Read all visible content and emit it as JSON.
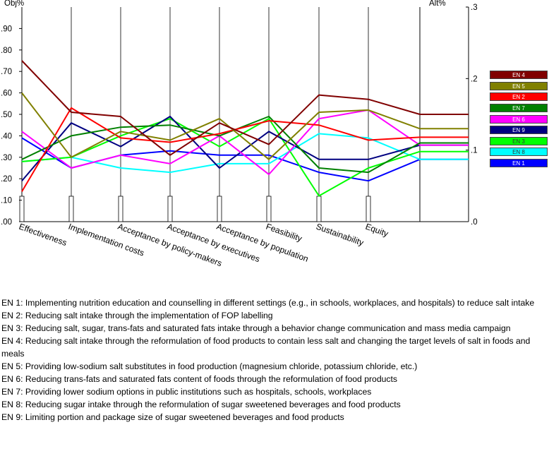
{
  "chart_data": {
    "type": "line",
    "left_axis_title": "Obj%",
    "right_axis_title": "Alt%",
    "left_ticks": [
      ".00",
      ".10",
      ".20",
      ".30",
      ".40",
      ".50",
      ".60",
      ".70",
      ".80",
      ".90"
    ],
    "right_ticks": [
      ".0",
      ".1",
      ".2",
      ".3"
    ],
    "ylim": [
      0,
      1.0
    ],
    "categories": [
      "Effectiveness",
      "Implementation costs",
      "Acceptance by policy-makers",
      "Acceptance by executives",
      "Acceptance by population",
      "Feasibility",
      "Sustainability",
      "Equity"
    ],
    "alt_right_limit": 0.3,
    "series": [
      {
        "name": "EN 4",
        "color": "#800000",
        "values": [
          0.75,
          0.51,
          0.49,
          0.31,
          0.46,
          0.36,
          0.59,
          0.57
        ],
        "alt": 0.15
      },
      {
        "name": "EN 5",
        "color": "#808000",
        "values": [
          0.6,
          0.3,
          0.42,
          0.38,
          0.48,
          0.29,
          0.51,
          0.52
        ],
        "alt": 0.13
      },
      {
        "name": "EN 2",
        "color": "#ff0000",
        "values": [
          0.14,
          0.53,
          0.39,
          0.37,
          0.41,
          0.47,
          0.45,
          0.38
        ],
        "alt": 0.118
      },
      {
        "name": "EN 7",
        "color": "#008000",
        "values": [
          0.29,
          0.4,
          0.44,
          0.45,
          0.4,
          0.49,
          0.25,
          0.23
        ],
        "alt": 0.11
      },
      {
        "name": "EN 6",
        "color": "#ff00ff",
        "values": [
          0.42,
          0.25,
          0.31,
          0.27,
          0.4,
          0.22,
          0.48,
          0.52
        ],
        "alt": 0.107
      },
      {
        "name": "EN 9",
        "color": "#000080",
        "values": [
          0.19,
          0.46,
          0.35,
          0.49,
          0.25,
          0.42,
          0.29,
          0.29
        ],
        "alt": 0.107
      },
      {
        "name": "EN 3",
        "color": "#00ff00",
        "values": [
          0.28,
          0.3,
          0.4,
          0.48,
          0.35,
          0.48,
          0.12,
          0.25
        ],
        "alt": 0.098
      },
      {
        "name": "EN 8",
        "color": "#00ffff",
        "values": [
          0.28,
          0.3,
          0.25,
          0.23,
          0.27,
          0.27,
          0.41,
          0.39
        ],
        "alt": 0.087
      },
      {
        "name": "EN 1",
        "color": "#0000ff",
        "values": [
          0.39,
          0.25,
          0.31,
          0.33,
          0.31,
          0.31,
          0.23,
          0.19
        ],
        "alt": 0.087
      }
    ]
  },
  "notes": [
    "EN 1: Implementing nutrition education and counselling in different settings (e.g., in schools, workplaces, and hospitals) to reduce salt intake",
    "EN 2: Reducing salt intake through the implementation of FOP labelling",
    "EN 3: Reducing salt, sugar, trans-fats and saturated fats intake through a behavior change communication and mass media campaign",
    "EN 4: Reducing salt intake through the reformulation of food products to contain less salt and changing the target levels of salt in foods and meals",
    "EN 5: Providing low-sodium salt substitutes in food production (magnesium chloride, potassium chloride, etc.)",
    "EN 6: Reducing trans-fats and saturated fats content of foods through the reformulation of food products",
    "EN 7: Providing lower sodium options in public institutions such as hospitals, schools, workplaces",
    "EN 8: Reducing sugar intake through the reformulation of sugar sweetened beverages and food products",
    "EN 9: Limiting portion and package size of sugar sweetened beverages and food products"
  ]
}
